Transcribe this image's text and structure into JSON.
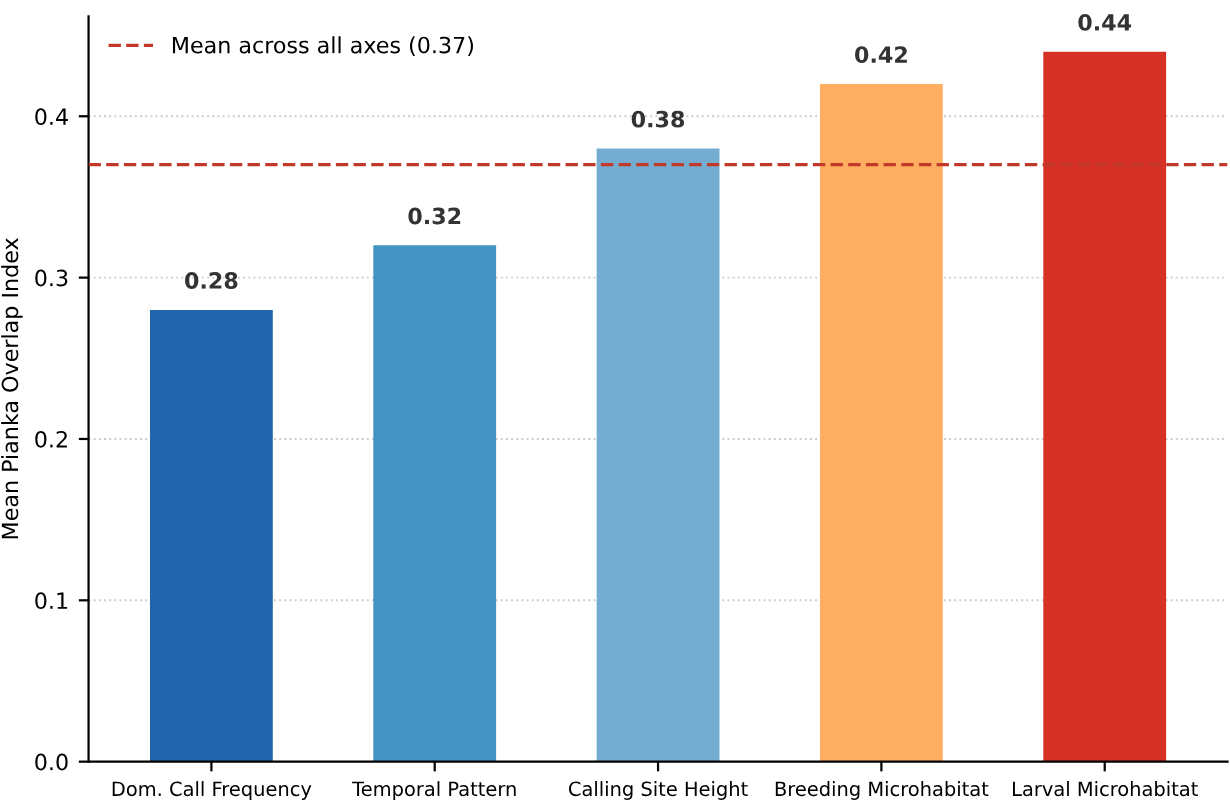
{
  "chart_data": {
    "type": "bar",
    "ylabel": "Mean Pianka Overlap Index",
    "categories": [
      "Dom. Call Frequency",
      "Temporal Pattern",
      "Calling Site Height",
      "Breeding Microhabitat",
      "Larval Microhabitat"
    ],
    "values": [
      0.28,
      0.32,
      0.38,
      0.42,
      0.44
    ],
    "colors": [
      "#2166ac",
      "#4393c3",
      "#74add1",
      "#fdae61",
      "#d73027"
    ],
    "ylim": [
      0,
      0.462
    ],
    "yticks": [
      {
        "value": 0,
        "label": "0.0"
      },
      0.1,
      0.2,
      0.3,
      0.4
    ],
    "ref_lines": [
      {
        "axis": "y",
        "value": 0.37,
        "label": "Mean across all axes (0.37)",
        "color": "#c0392b",
        "line_style": "dashed"
      }
    ],
    "data_labels": true,
    "grid": "y",
    "legend": "top left"
  }
}
